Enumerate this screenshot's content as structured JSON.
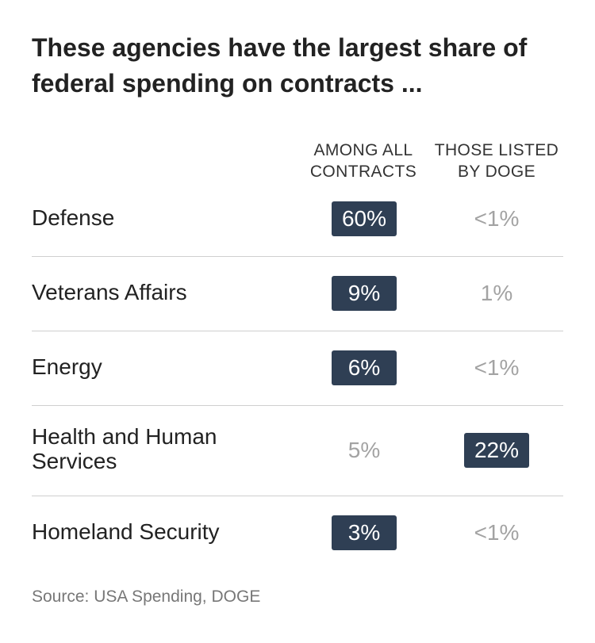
{
  "title": "These agencies have the largest share of federal spending on contracts ...",
  "columns": [
    {
      "line1": "AMONG ALL",
      "line2": "CONTRACTS"
    },
    {
      "line1": "THOSE LISTED",
      "line2": "BY DOGE"
    }
  ],
  "rows": [
    {
      "agency": "Defense",
      "all_contracts": "60%",
      "doge": "<1%",
      "highlight": "all_contracts"
    },
    {
      "agency": "Veterans Affairs",
      "all_contracts": "9%",
      "doge": "1%",
      "highlight": "all_contracts"
    },
    {
      "agency": "Energy",
      "all_contracts": "6%",
      "doge": "<1%",
      "highlight": "all_contracts"
    },
    {
      "agency": "Health and Human Services",
      "all_contracts": "5%",
      "doge": "22%",
      "highlight": "doge"
    },
    {
      "agency": "Homeland Security",
      "all_contracts": "3%",
      "doge": "<1%",
      "highlight": "all_contracts"
    }
  ],
  "source": "Source: USA Spending, DOGE",
  "colors": {
    "highlight_bg": "#2f3f54",
    "highlight_text": "#ffffff",
    "muted_text": "#a3a3a3",
    "divider": "#cfcfcf"
  },
  "chart_data": {
    "type": "table",
    "title": "These agencies have the largest share of federal spending on contracts ...",
    "columns": [
      "AMONG ALL CONTRACTS",
      "THOSE LISTED BY DOGE"
    ],
    "categories": [
      "Defense",
      "Veterans Affairs",
      "Energy",
      "Health and Human Services",
      "Homeland Security"
    ],
    "series": [
      {
        "name": "AMONG ALL CONTRACTS",
        "values": [
          "60%",
          "9%",
          "6%",
          "5%",
          "3%"
        ]
      },
      {
        "name": "THOSE LISTED BY DOGE",
        "values": [
          "<1%",
          "1%",
          "<1%",
          "22%",
          "<1%"
        ]
      }
    ],
    "source": "Source: USA Spending, DOGE"
  }
}
